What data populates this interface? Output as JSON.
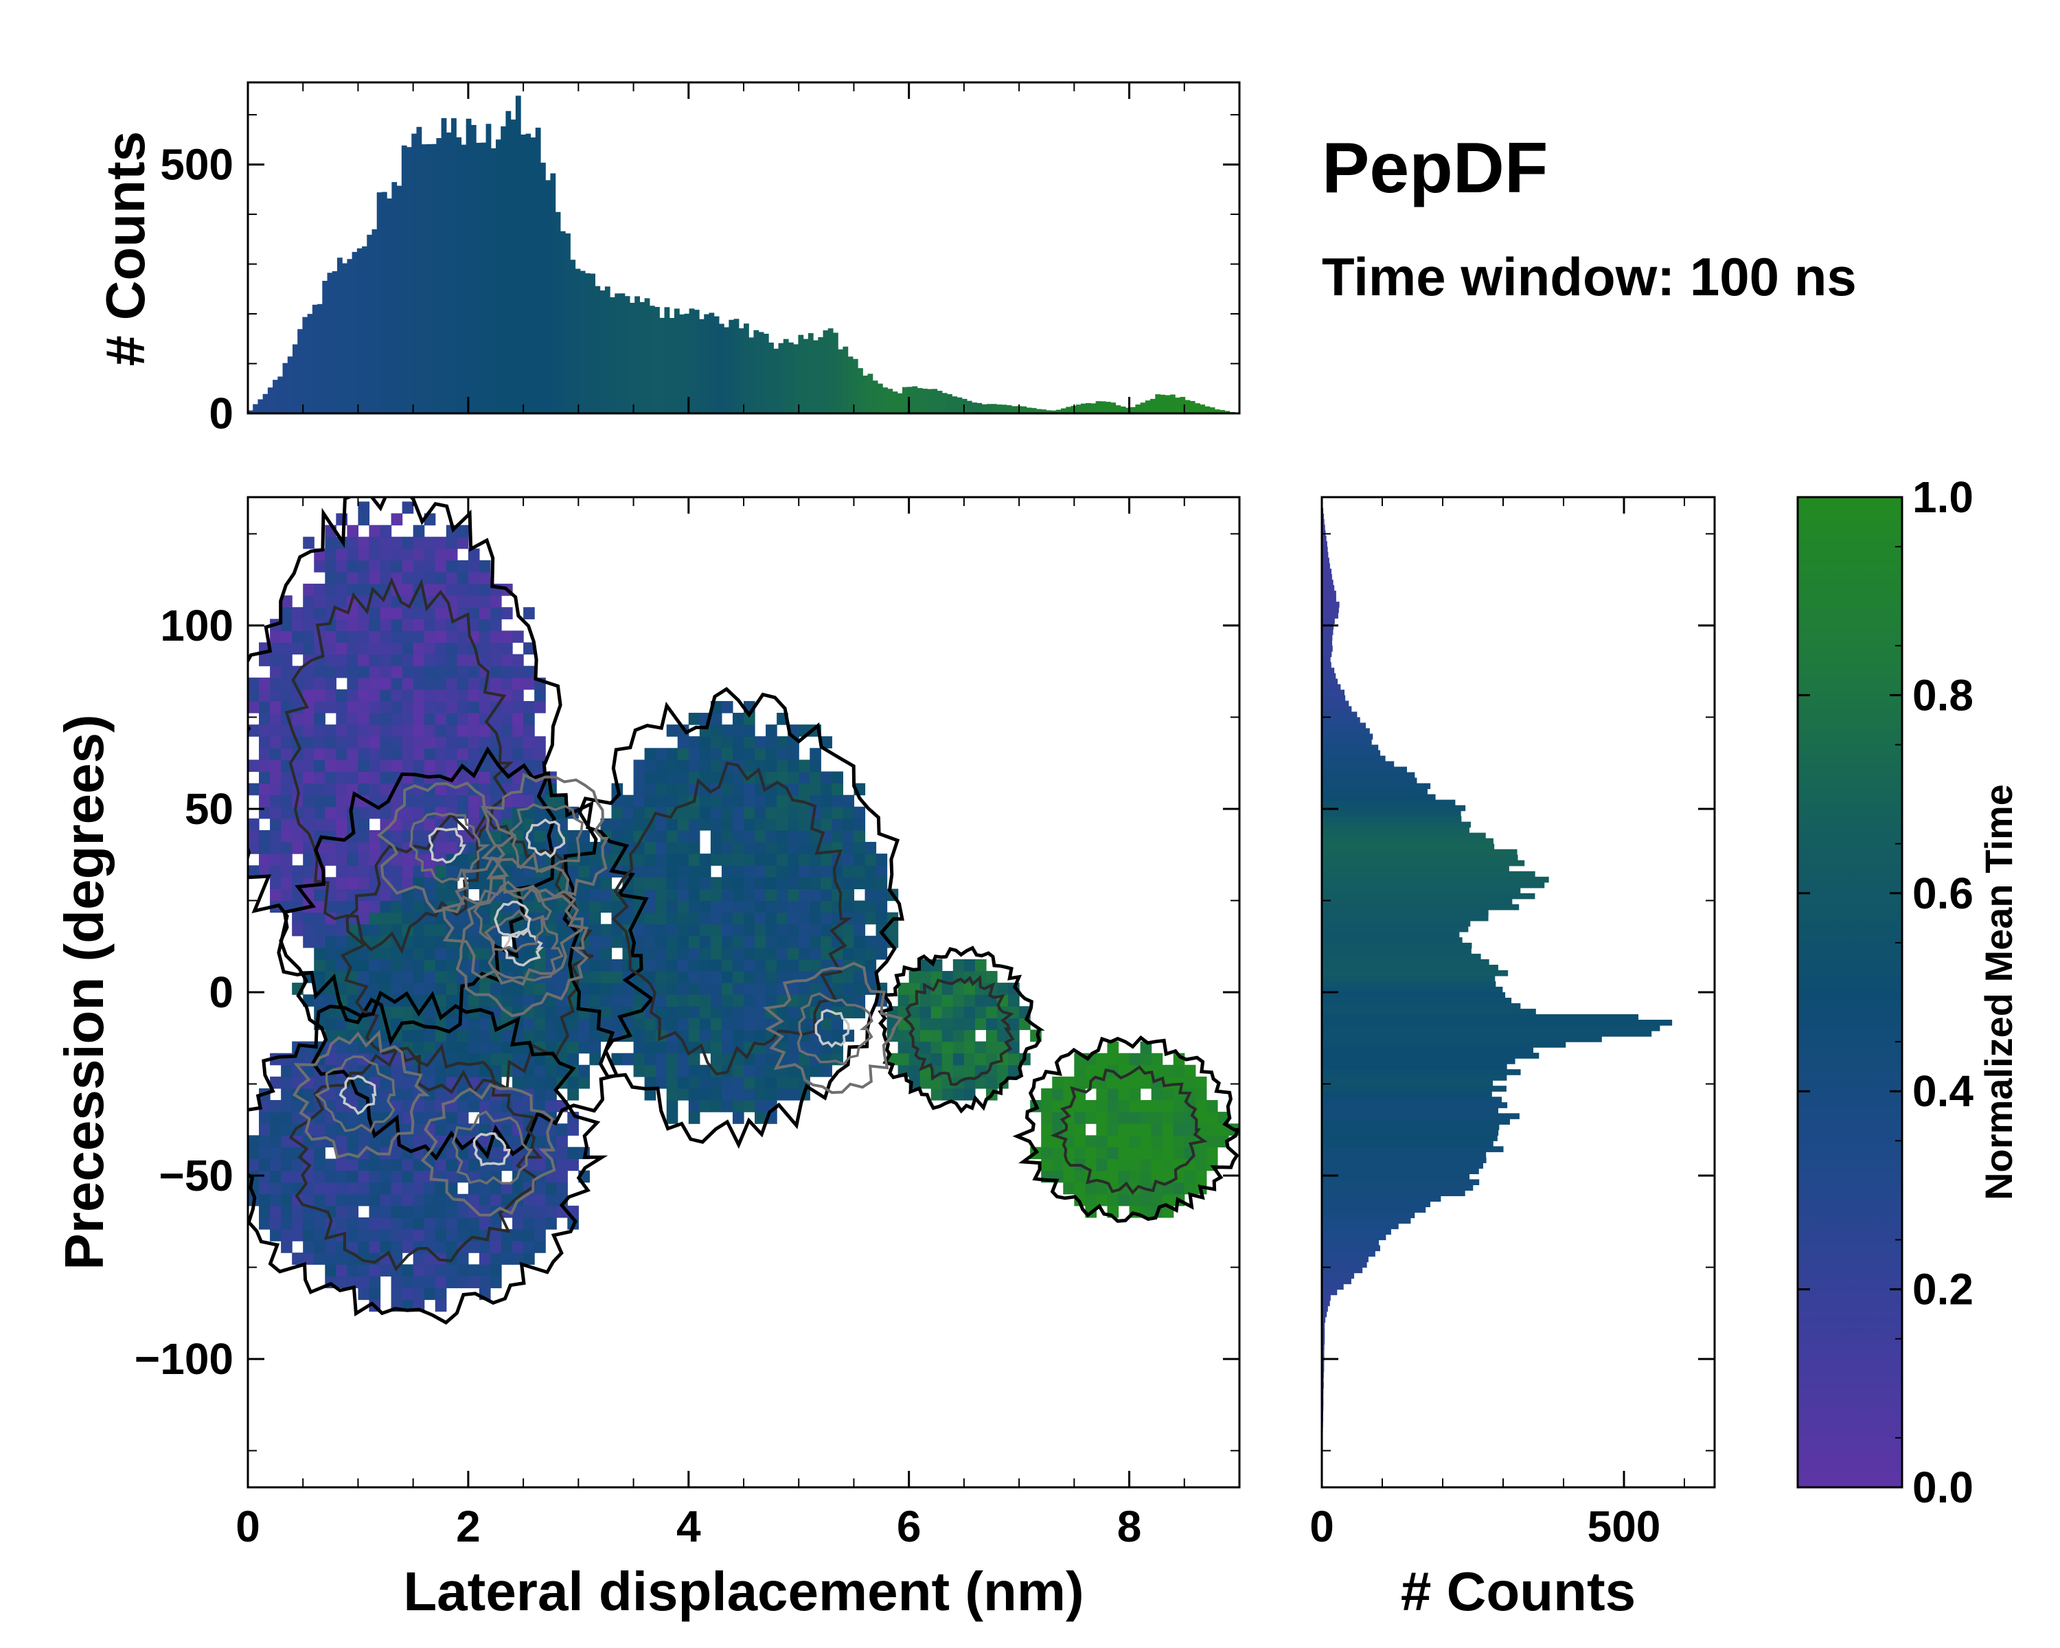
{
  "colors": {
    "cmap": [
      "#5e35a6",
      "#3b3f9c",
      "#1e4a8a",
      "#0e4d72",
      "#155f5e",
      "#1f7a3e",
      "#228b22"
    ],
    "contour_outer": "#000000",
    "contour_dark": "#2b2b2b",
    "contour_mid": "#6f6f6f",
    "contour_light": "#c8c8c8"
  },
  "chart_data": {
    "type": "joint-heatmap-with-marginal-histograms",
    "title": "PepDF",
    "subtitle": "Time window: 100 ns",
    "main": {
      "type": "heatmap",
      "xlabel": "Lateral displacement (nm)",
      "ylabel": "Precession (degrees)",
      "xlim": [
        0,
        9
      ],
      "ylim": [
        -135,
        135
      ],
      "xticks": [
        "0",
        "2",
        "4",
        "6",
        "8"
      ],
      "xtick_values": [
        0,
        2,
        4,
        6,
        8
      ],
      "yticks": [
        "100",
        "50",
        "0",
        "−50",
        "−100"
      ],
      "ytick_values": [
        100,
        50,
        0,
        -50,
        -100
      ],
      "color_metric": "Normalized Mean Time",
      "regions": [
        {
          "name": "upper-left lobe",
          "x": [
            0,
            2.7
          ],
          "y": [
            -5,
            130
          ],
          "mean_time": 0.15
        },
        {
          "name": "central core",
          "x": [
            0.5,
            3.5
          ],
          "y": [
            -40,
            60
          ],
          "mean_time": 0.5
        },
        {
          "name": "mid band",
          "x": [
            3.0,
            5.8
          ],
          "y": [
            -35,
            75
          ],
          "mean_time": 0.5
        },
        {
          "name": "right arm",
          "x": [
            5.8,
            7.1
          ],
          "y": [
            -30,
            10
          ],
          "mean_time": 0.75
        },
        {
          "name": "far-right island",
          "x": [
            7.1,
            8.9
          ],
          "y": [
            -60,
            -15
          ],
          "mean_time": 0.98
        },
        {
          "name": "lower-left lobe",
          "x": [
            0,
            3.0
          ],
          "y": [
            -85,
            -5
          ],
          "mean_time": 0.3
        }
      ],
      "density_peaks": [
        {
          "x": 2.5,
          "y": 12
        },
        {
          "x": 2.4,
          "y": 20
        },
        {
          "x": 1.8,
          "y": 40
        },
        {
          "x": 2.7,
          "y": 42
        },
        {
          "x": 5.3,
          "y": -10
        },
        {
          "x": 2.2,
          "y": -43
        },
        {
          "x": 1.0,
          "y": -28
        }
      ]
    },
    "top_histogram": {
      "type": "bar",
      "ylabel": "# Counts",
      "xlim": [
        0,
        9
      ],
      "ylim": [
        0,
        665
      ],
      "yticks": [
        "0",
        "500"
      ],
      "ytick_values": [
        0,
        500
      ],
      "x": [
        0.0,
        0.3,
        0.6,
        1.0,
        1.2,
        1.5,
        1.7,
        2.0,
        2.3,
        2.5,
        2.7,
        3.0,
        3.3,
        3.7,
        4.0,
        4.3,
        4.5,
        4.8,
        5.0,
        5.3,
        5.6,
        5.9,
        6.0,
        6.2,
        6.6,
        7.0,
        7.3,
        7.6,
        7.8,
        8.0,
        8.3,
        8.5,
        8.8,
        9.0
      ],
      "values": [
        0,
        80,
        220,
        340,
        420,
        550,
        560,
        570,
        580,
        600,
        500,
        300,
        250,
        210,
        200,
        190,
        170,
        140,
        150,
        160,
        80,
        40,
        55,
        50,
        20,
        15,
        5,
        20,
        25,
        10,
        40,
        30,
        8,
        0
      ],
      "mean_time": [
        0.3,
        0.32,
        0.35,
        0.38,
        0.4,
        0.42,
        0.45,
        0.47,
        0.5,
        0.5,
        0.5,
        0.55,
        0.58,
        0.62,
        0.6,
        0.55,
        0.62,
        0.66,
        0.7,
        0.72,
        0.8,
        0.85,
        0.82,
        0.8,
        0.78,
        0.85,
        0.9,
        0.92,
        0.95,
        0.95,
        0.97,
        0.98,
        0.98,
        0.98
      ]
    },
    "right_histogram": {
      "type": "barh",
      "xlabel": "# Counts",
      "xlim": [
        0,
        650
      ],
      "xticks": [
        "0",
        "500"
      ],
      "xtick_values": [
        0,
        500
      ],
      "y": [
        -135,
        -90,
        -83,
        -80,
        -75,
        -70,
        -65,
        -60,
        -55,
        -50,
        -45,
        -40,
        -35,
        -30,
        -25,
        -20,
        -15,
        -12,
        -10,
        -7,
        -5,
        0,
        5,
        10,
        15,
        20,
        25,
        30,
        35,
        40,
        45,
        50,
        55,
        60,
        65,
        70,
        75,
        80,
        90,
        100,
        105,
        110,
        120,
        135
      ],
      "values": [
        0,
        5,
        15,
        40,
        70,
        90,
        120,
        170,
        220,
        260,
        290,
        305,
        310,
        300,
        295,
        320,
        380,
        500,
        600,
        520,
        350,
        300,
        290,
        250,
        230,
        260,
        340,
        360,
        320,
        300,
        250,
        230,
        180,
        140,
        100,
        80,
        60,
        40,
        15,
        20,
        30,
        20,
        10,
        0
      ],
      "mean_time": [
        0.2,
        0.2,
        0.22,
        0.25,
        0.28,
        0.32,
        0.35,
        0.4,
        0.42,
        0.45,
        0.45,
        0.5,
        0.48,
        0.45,
        0.55,
        0.5,
        0.5,
        0.52,
        0.52,
        0.5,
        0.55,
        0.5,
        0.62,
        0.6,
        0.58,
        0.6,
        0.62,
        0.65,
        0.68,
        0.7,
        0.66,
        0.55,
        0.48,
        0.45,
        0.4,
        0.35,
        0.3,
        0.25,
        0.2,
        0.18,
        0.15,
        0.15,
        0.15,
        0.15
      ]
    },
    "colorbar": {
      "label": "Normalized Mean Time",
      "range": [
        0,
        1
      ],
      "ticks": [
        "0.0",
        "0.2",
        "0.4",
        "0.6",
        "0.8",
        "1.0"
      ],
      "tick_values": [
        0.0,
        0.2,
        0.4,
        0.6,
        0.8,
        1.0
      ]
    }
  }
}
